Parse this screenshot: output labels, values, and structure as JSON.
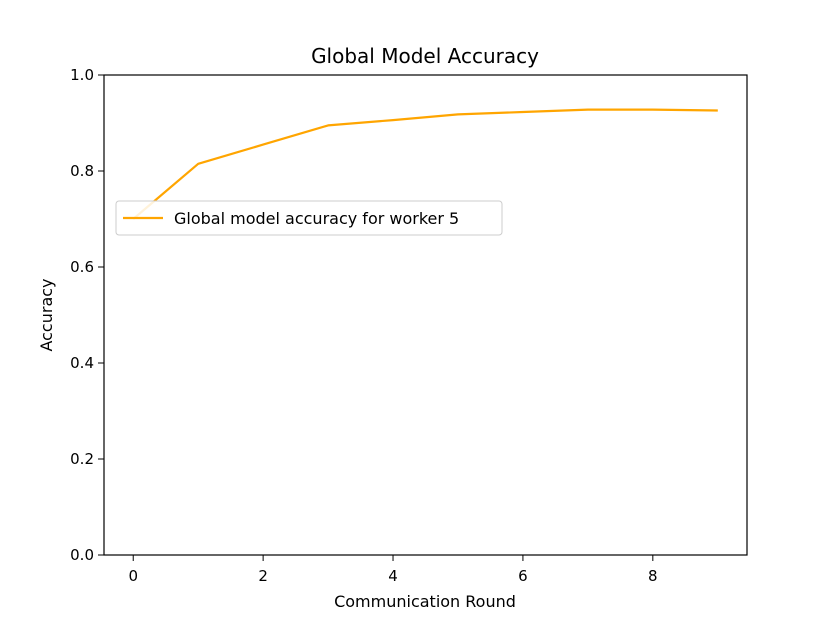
{
  "chart_data": {
    "type": "line",
    "title": "Global Model Accuracy",
    "xlabel": "Communication Round",
    "ylabel": "Accuracy",
    "xlim": [
      -0.45,
      9.45
    ],
    "ylim": [
      0.0,
      1.0
    ],
    "x_ticks": [
      0,
      2,
      4,
      6,
      8
    ],
    "y_ticks": [
      0.0,
      0.2,
      0.4,
      0.6,
      0.8,
      1.0
    ],
    "x_tick_labels": [
      "0",
      "2",
      "4",
      "6",
      "8"
    ],
    "y_tick_labels": [
      "0.0",
      "0.2",
      "0.4",
      "0.6",
      "0.8",
      "1.0"
    ],
    "grid": false,
    "legend": {
      "placement": "center-left",
      "entries": [
        "Global model accuracy for worker 5"
      ]
    },
    "series": [
      {
        "name": "Global model accuracy for worker 5",
        "color": "#FFA500",
        "x": [
          0,
          1,
          2,
          3,
          4,
          5,
          6,
          7,
          8,
          9
        ],
        "y": [
          0.7,
          0.815,
          0.855,
          0.895,
          0.906,
          0.918,
          0.923,
          0.928,
          0.928,
          0.926
        ]
      }
    ]
  }
}
